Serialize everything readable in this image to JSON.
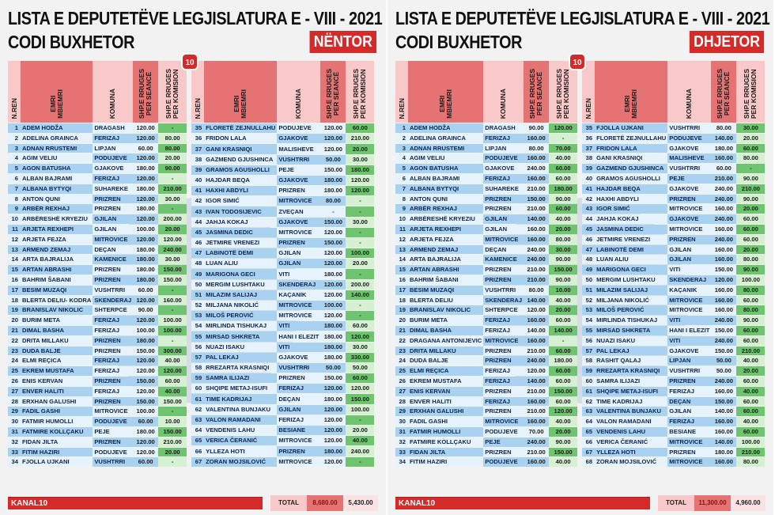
{
  "headers": {
    "nr": "N.REN",
    "name1": "EMRI",
    "name2": "MBIEMRI",
    "komuna": "KOMUNA",
    "seance1": "SHP.E RRUGES",
    "seance2": "PER SEANCË",
    "komision1": "SHP.E RRUGES",
    "komision2": "PER KOMISION"
  },
  "panels": [
    {
      "title_line1": "LISTA E DEPUTETËVE  LEGJISLATURA E - VIII - 2021",
      "title_line2": "CODI  BUXHETOR",
      "month": "NËNTOR",
      "logo": "10",
      "footer_label": "KANAL10",
      "total_label": "TOTAL",
      "total_seance": "8,680.00",
      "total_komision": "5,430.00",
      "rows": [
        [
          "1",
          "ADEM HODŽA",
          "DRAGASH",
          "120.00",
          "-"
        ],
        [
          "2",
          "ADELINA GRAINCA",
          "FERIZAJ",
          "120.00",
          "80.00"
        ],
        [
          "3",
          "ADNAN RRUSTEMI",
          "LIPJAN",
          "60.00",
          "80.00"
        ],
        [
          "4",
          "AGIM VELIU",
          "PODUJEVE",
          "120.00",
          "20.00"
        ],
        [
          "5",
          "AGON BATUSHA",
          "GJAKOVE",
          "180.00",
          "90.00"
        ],
        [
          "6",
          "ALBAN BAJRAMI",
          "FERIZAJ",
          "120.00",
          "-"
        ],
        [
          "7",
          "ALBANA BYTYQI",
          "SUHAREKE",
          "180.00",
          "210.00"
        ],
        [
          "8",
          "ANTON QUNI",
          "PRIZREN",
          "120.00",
          "30.00"
        ],
        [
          "9",
          "ARBËR REXHAJ",
          "PRIZREN",
          "180.00",
          "-"
        ],
        [
          "10",
          "ARBËRESHË KRYEZIU",
          "GJILAN",
          "120.00",
          "200.00"
        ],
        [
          "11",
          "ARJETA REXHEPI",
          "GJILAN",
          "100.00",
          "20.00"
        ],
        [
          "12",
          "ARJETA FEJZA",
          "MITROVICE",
          "120.00",
          "120.00"
        ],
        [
          "13",
          "ARMEND ZEMAJ",
          "DEÇAN",
          "180.00",
          "240.00"
        ],
        [
          "14",
          "ARTA BAJRALIJA",
          "KAMENICE",
          "180.00",
          "30.00"
        ],
        [
          "15",
          "ARTAN ABRASHI",
          "PRIZREN",
          "180.00",
          "150.00"
        ],
        [
          "16",
          "BAHRIM ŠABANI",
          "PRIZREN",
          "180.00",
          "150.00"
        ],
        [
          "17",
          "BESIM MUZAQI",
          "VUSHTRRI",
          "60.00",
          "-"
        ],
        [
          "18",
          "BLERTA DELIU- KODRA",
          "SKENDERAJ",
          "120.00",
          "160.00"
        ],
        [
          "19",
          "BRANISLAV NIKOLIC",
          "SHTERPCE",
          "90.00",
          "-"
        ],
        [
          "20",
          "BURIM META",
          "FERIZAJ",
          "120.00",
          "100.00"
        ],
        [
          "21",
          "DIMAL BASHA",
          "FERIZAJ",
          "100.00",
          "100.00"
        ],
        [
          "22",
          "DRITA MILLAKU",
          "PRIZREN",
          "180.00",
          "-"
        ],
        [
          "23",
          "DUDA BALJE",
          "PRIZREN",
          "150.00",
          "300.00"
        ],
        [
          "24",
          "ELMI REÇICA",
          "FERIZAJ",
          "120.00",
          "40.00"
        ],
        [
          "25",
          "EKREM MUSTAFA",
          "FERIZAJ",
          "120.00",
          "120.00"
        ],
        [
          "26",
          "ENIS KERVAN",
          "PRIZREN",
          "150.00",
          "60.00"
        ],
        [
          "27",
          "ENVER HALITI",
          "FERIZAJ",
          "120.00",
          "40.00"
        ],
        [
          "28",
          "ERXHAN GALUSHI",
          "PRIZREN",
          "150.00",
          "150.00"
        ],
        [
          "29",
          "FADIL GASHI",
          "MITROVICE",
          "100.00",
          "-"
        ],
        [
          "30",
          "FATMIR HUMOLLI",
          "PODUJEVE",
          "60.00",
          "10.00"
        ],
        [
          "31",
          "FATMIRE KOLLÇAKU",
          "PEJE",
          "180.00",
          "150.00"
        ],
        [
          "32",
          "FIDAN JILTA",
          "PRIZREN",
          "120.00",
          "210.00"
        ],
        [
          "33",
          "FITIM HAZIRI",
          "PODUJEVE",
          "120.00",
          "20.00"
        ],
        [
          "34",
          "FJOLLA UJKANI",
          "VUSHTRRI",
          "60.00",
          "-"
        ]
      ],
      "rows_right": [
        [
          "35",
          "FLORETË ZEJNULLAHU",
          "PODUJEVE",
          "120.00",
          "60.00"
        ],
        [
          "36",
          "FRIDON LALA",
          "GJAKOVE",
          "120.00",
          "210.00"
        ],
        [
          "37",
          "GANI KRASNIQI",
          "MALISHEVE",
          "120.00",
          "20.00"
        ],
        [
          "38",
          "GAZMEND GJUSHINCA",
          "VUSHTRRI",
          "50.00",
          "30.00"
        ],
        [
          "39",
          "GRAMOS AGUSHOLLI",
          "PEJE",
          "150.00",
          "180.00"
        ],
        [
          "40",
          "HAJDAR BEQA",
          "GJAKOVE",
          "180.00",
          "120.00"
        ],
        [
          "41",
          "HAXHI ABDYLI",
          "PRIZREN",
          "180.00",
          "120.00"
        ],
        [
          "42",
          "IGOR SIMIĆ",
          "MITROVICE",
          "80.00",
          "-"
        ],
        [
          "43",
          "IVAN TODOSIJEVIC",
          "ZVEÇAN",
          "-",
          "-"
        ],
        [
          "44",
          "JAHJA KOKAJ",
          "GJAKOVE",
          "150.00",
          "30.00"
        ],
        [
          "45",
          "JASMINA DEDIC",
          "MITROVICE",
          "120.00",
          "-"
        ],
        [
          "46",
          "JETMIRE VRENEZI",
          "PRIZREN",
          "150.00",
          "-"
        ],
        [
          "47",
          "LABINOTË DEMI",
          "GJILAN",
          "120.00",
          "100.00"
        ],
        [
          "48",
          "LUAN ALIU",
          "GJILAN",
          "120.00",
          "20.00"
        ],
        [
          "49",
          "MARIGONA GECI",
          "VITI",
          "180.00",
          "-"
        ],
        [
          "50",
          "MERGIM LUSHTAKU",
          "SKENDERAJ",
          "120.00",
          "200.00"
        ],
        [
          "51",
          "MILAZIM SALIJAJ",
          "KAÇANIK",
          "120.00",
          "140.00"
        ],
        [
          "52",
          "MILJANA NIKOLIĆ",
          "MITROVICE",
          "100.00",
          "-"
        ],
        [
          "53",
          "MILOŠ PEROVIĆ",
          "MITROVICE",
          "120.00",
          "-"
        ],
        [
          "54",
          "MIRLINDA TISHUKAJ",
          "VITI",
          "180.00",
          "60.00"
        ],
        [
          "55",
          "MIRSAD SHKRETA",
          "HANI I ELEZIT",
          "180.00",
          "120.00"
        ],
        [
          "56",
          "NUAZI ISAKU",
          "VITI",
          "180.00",
          "30.00"
        ],
        [
          "57",
          "PAL LEKAJ",
          "GJAKOVE",
          "180.00",
          "330.00"
        ],
        [
          "58",
          "RREZARTA KRASNIQI",
          "VUSHTRRI",
          "50.00",
          "50.00"
        ],
        [
          "59",
          "SAMRA ILIJAZI",
          "PRIZREN",
          "150.00",
          "60.00"
        ],
        [
          "60",
          "SHQIPE METAJ-ISUFI",
          "FERIZAJ",
          "120.00",
          "120.00"
        ],
        [
          "61",
          "TIME KADRIJAJ",
          "DEÇAN",
          "180.00",
          "150.00"
        ],
        [
          "62",
          "VALENTINA BUNJAKU",
          "GJILAN",
          "120.00",
          "100.00"
        ],
        [
          "63",
          "VALON RAMADANI",
          "FERIZAJ",
          "120.00",
          "-"
        ],
        [
          "64",
          "VENDENIS LAHU",
          "BESIANE",
          "120.00",
          "20.00"
        ],
        [
          "65",
          "VERICA ČERANIĆ",
          "MITROVICE",
          "120.00",
          "40.00"
        ],
        [
          "66",
          "YLLEZA HOTI",
          "PRIZREN",
          "180.00",
          "240.00"
        ],
        [
          "67",
          "ZORAN MOJSILOVIĆ",
          "MITROVICE",
          "120.00",
          "-"
        ]
      ]
    },
    {
      "title_line1": "LISTA E DEPUTETËVE  LEGJISLATURA E - VIII - 2021",
      "title_line2": "CODI  BUXHETOR",
      "month": "DHJETOR",
      "logo": "10",
      "footer_label": "KANAL10",
      "total_label": "TOTAL",
      "total_seance": "11,300.00",
      "total_komision": "4,960.00",
      "rows": [
        [
          "1",
          "ADEM HODŽA",
          "DRAGASH",
          "90.00",
          "120.00"
        ],
        [
          "2",
          "ADELINA GRAINCA",
          "FERIZAJ",
          "160.00",
          "-"
        ],
        [
          "3",
          "ADNAN RRUSTEMI",
          "LIPJAN",
          "80.00",
          "70.00"
        ],
        [
          "4",
          "AGIM VELIU",
          "PODUJEVE",
          "160.00",
          "40.00"
        ],
        [
          "5",
          "AGON BATUSHA",
          "GJAKOVE",
          "240.00",
          "60.00"
        ],
        [
          "6",
          "ALBAN BAJRAMI",
          "FERIZAJ",
          "160.00",
          "60.00"
        ],
        [
          "7",
          "ALBANA BYTYQI",
          "SUHAREKE",
          "210.00",
          "180.00"
        ],
        [
          "8",
          "ANTON QUNI",
          "PRIZREN",
          "150.00",
          "90.00"
        ],
        [
          "9",
          "ARBËR REXHAJ",
          "PRIZREN",
          "210.00",
          "60.00"
        ],
        [
          "10",
          "ARBËRESHË KRYEZIU",
          "GJILAN",
          "140.00",
          "40.00"
        ],
        [
          "11",
          "ARJETA REXHEPI",
          "GJILAN",
          "160.00",
          "20.00"
        ],
        [
          "12",
          "ARJETA FEJZA",
          "MITROVICE",
          "160.00",
          "80.00"
        ],
        [
          "13",
          "ARMEND ZEMAJ",
          "DEÇAN",
          "240.00",
          "30.00"
        ],
        [
          "14",
          "ARTA BAJRALIJA",
          "KAMENICE",
          "240.00",
          "90.00"
        ],
        [
          "15",
          "ARTAN ABRASHI",
          "PRIZREN",
          "210.00",
          "150.00"
        ],
        [
          "16",
          "BAHRIM ŠABANI",
          "PRIZREN",
          "210.00",
          "90.00"
        ],
        [
          "17",
          "BESIM MUZAQI",
          "VUSHTRRI",
          "80.00",
          "10.00"
        ],
        [
          "18",
          "BLERTA DELIU",
          "SKENDERAJ",
          "140.00",
          "40.00"
        ],
        [
          "19",
          "BRANISLAV NIKOLIC",
          "SHTERPCE",
          "120.00",
          "20.00"
        ],
        [
          "20",
          "BURIM META",
          "FERIZAJ",
          "160.00",
          "60.00"
        ],
        [
          "21",
          "DIMAL BASHA",
          "FERIZAJ",
          "140.00",
          "140.00"
        ],
        [
          "22",
          "DRAGANA ANTONIJEVIC",
          "MITROVICE",
          "160.00",
          "-"
        ],
        [
          "23",
          "DRITA MILLAKU",
          "PRIZREN",
          "210.00",
          "60.00"
        ],
        [
          "24",
          "DUDA BALJE",
          "PRIZREN",
          "240.00",
          "180.00"
        ],
        [
          "25",
          "ELMI REÇICA",
          "FERIZAJ",
          "120.00",
          "60.00"
        ],
        [
          "26",
          "EKREM MUSTAFA",
          "FERIZAJ",
          "140.00",
          "60.00"
        ],
        [
          "27",
          "ENIS KERVAN",
          "PRIZREN",
          "210.00",
          "150.00"
        ],
        [
          "28",
          "ENVER HALITI",
          "FERIZAJ",
          "160.00",
          "60.00"
        ],
        [
          "29",
          "ERXHAN GALUSHI",
          "PRIZREN",
          "210.00",
          "120.00"
        ],
        [
          "30",
          "FADIL GASHI",
          "MITROVICE",
          "160.00",
          "40.00"
        ],
        [
          "31",
          "FATMIR HUMOLLI",
          "PODUJEVE",
          "70.00",
          "20.00"
        ],
        [
          "32",
          "FATMIRE KOLLÇAKU",
          "PEJE",
          "240.00",
          "90.00"
        ],
        [
          "33",
          "FIDAN JILTA",
          "PRIZREN",
          "210.00",
          "150.00"
        ],
        [
          "34",
          "FITIM HAZIRI",
          "PODUJEVE",
          "160.00",
          "40.00"
        ]
      ],
      "rows_right": [
        [
          "35",
          "FJOLLA UJKANI",
          "VUSHTRRI",
          "80.00",
          "30.00"
        ],
        [
          "36",
          "FLORETË ZEJNULLAHU",
          "PODUJEVE",
          "140.00",
          "20.00"
        ],
        [
          "37",
          "FRIDON LALA",
          "GJAKOVE",
          "180.00",
          "60.00"
        ],
        [
          "38",
          "GANI KRASNIQI",
          "MALISHEVE",
          "160.00",
          "80.00"
        ],
        [
          "39",
          "GAZMEND GJUSHINCA",
          "VUSHTRRI",
          "60.00",
          "-"
        ],
        [
          "40",
          "GRAMOS AGUSHOLLI",
          "PEJE",
          "210.00",
          "90.00"
        ],
        [
          "41",
          "HAJDAR BEQA",
          "GJAKOVE",
          "240.00",
          "210.00"
        ],
        [
          "42",
          "HAXHI ABDYLI",
          "PRIZREN",
          "240.00",
          "90.00"
        ],
        [
          "43",
          "IGOR SIMIĆ",
          "MITROVICE",
          "160.00",
          "20.00"
        ],
        [
          "44",
          "JAHJA KOKAJ",
          "GJAKOVE",
          "240.00",
          "60.00"
        ],
        [
          "45",
          "JASMINA DEDIC",
          "MITROVICE",
          "160.00",
          "60.00"
        ],
        [
          "46",
          "JETMIRE VRENEZI",
          "PRIZREN",
          "240.00",
          "60.00"
        ],
        [
          "47",
          "LABINOTË DEMI",
          "GJILAN",
          "160.00",
          "20.00"
        ],
        [
          "48",
          "LUAN ALIU",
          "GJILAN",
          "160.00",
          "80.00"
        ],
        [
          "49",
          "MARIGONA GECI",
          "VITI",
          "150.00",
          "90.00"
        ],
        [
          "50",
          "MERGIM LUSHTAKU",
          "SKENDERAJ",
          "120.00",
          "100.00"
        ],
        [
          "51",
          "MILAZIM SALIJAJ",
          "KAÇANIK",
          "160.00",
          "80.00"
        ],
        [
          "52",
          "MILJANA NIKOLIĆ",
          "MITROVICE",
          "160.00",
          "60.00"
        ],
        [
          "53",
          "MILOŠ PEROVIĆ",
          "MITROVICE",
          "160.00",
          "80.00"
        ],
        [
          "54",
          "MIRLINDA TISHUKAJ",
          "VITI",
          "240.00",
          "90.00"
        ],
        [
          "55",
          "MIRSAD SHKRETA",
          "HANI I ELEZIT",
          "150.00",
          "60.00"
        ],
        [
          "56",
          "NUAZI ISAKU",
          "VITI",
          "240.00",
          "60.00"
        ],
        [
          "57",
          "PAL LEKAJ",
          "GJAKOVE",
          "150.00",
          "210.00"
        ],
        [
          "58",
          "RASHIT QALAJ",
          "LIPJAN",
          "50.00",
          "40.00"
        ],
        [
          "59",
          "RREZARTA KRASNIQI",
          "VUSHTRRI",
          "50.00",
          "20.00"
        ],
        [
          "60",
          "SAMRA ILIJAZI",
          "PRIZREN",
          "240.00",
          "60.00"
        ],
        [
          "61",
          "SHQIPE METAJ-ISUFI",
          "FERIZAJ",
          "160.00",
          "40.00"
        ],
        [
          "62",
          "TIME KADRIJAJ",
          "DEÇAN",
          "150.00",
          "60.00"
        ],
        [
          "63",
          "VALENTINA BUNJAKU",
          "GJILAN",
          "140.00",
          "60.00"
        ],
        [
          "64",
          "VALON RAMADANI",
          "FERIZAJ",
          "160.00",
          "40.00"
        ],
        [
          "65",
          "VENDENIS LAHU",
          "BESIANE",
          "160.00",
          "60.00"
        ],
        [
          "66",
          "VERICA ČERANIĆ",
          "MITROVICE",
          "140.00",
          "100.00"
        ],
        [
          "67",
          "YLLEZA HOTI",
          "PRIZREN",
          "180.00",
          "210.00"
        ],
        [
          "68",
          "ZORAN MOJSILOVIĆ",
          "MITROVICE",
          "160.00",
          "80.00"
        ]
      ]
    }
  ]
}
